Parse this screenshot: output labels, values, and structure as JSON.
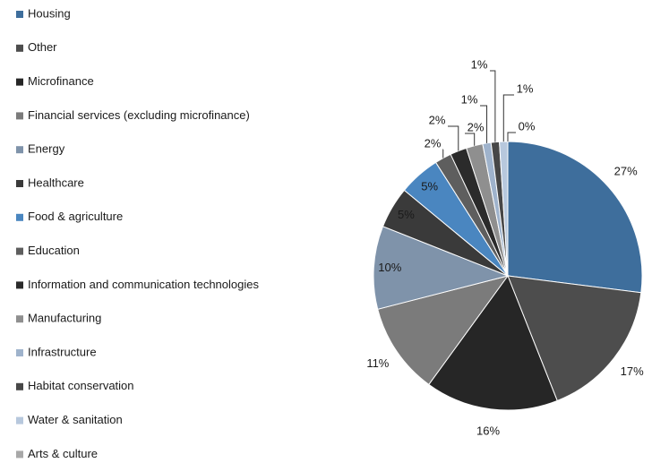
{
  "chart_data": {
    "type": "pie",
    "categories": [
      "Housing",
      "Other",
      "Microfinance",
      "Financial services (excluding microfinance)",
      "Energy",
      "Healthcare",
      "Food & agriculture",
      "Education",
      "Information and communication technologies",
      "Manufacturing",
      "Infrastructure",
      "Habitat conservation",
      "Water & sanitation",
      "Arts & culture"
    ],
    "values": [
      27,
      17,
      16,
      11,
      10,
      5,
      5,
      2,
      2,
      2,
      1,
      1,
      1,
      0
    ],
    "value_labels": [
      "27%",
      "17%",
      "16%",
      "11%",
      "10%",
      "5%",
      "5%",
      "2%",
      "2%",
      "2%",
      "1%",
      "1%",
      "1%",
      "0%"
    ],
    "colors": [
      "#3e6e9c",
      "#4d4d4d",
      "#262626",
      "#7b7b7b",
      "#7f93aa",
      "#3a3a3a",
      "#4a86c0",
      "#5e5e5e",
      "#2b2b2b",
      "#8f8f8f",
      "#9fb3cc",
      "#474747",
      "#b7c8dd",
      "#a8a8a8"
    ],
    "legend": "left"
  }
}
